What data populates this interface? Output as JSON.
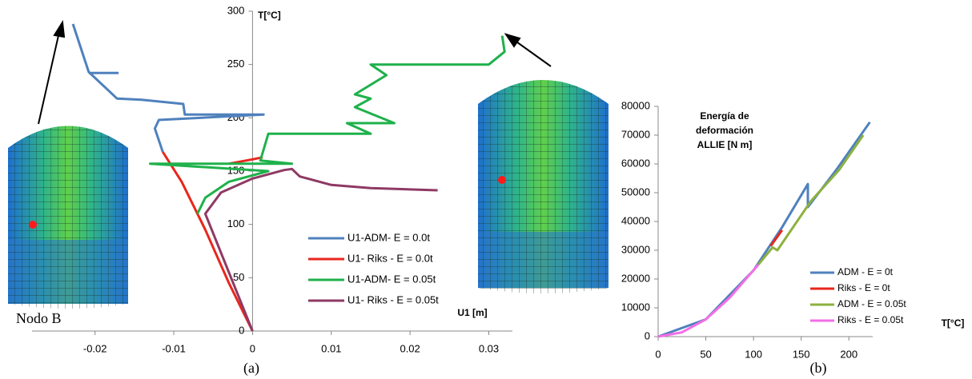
{
  "chart_data": [
    {
      "type": "line",
      "caption": "(a)",
      "annotation": "Nodo B",
      "x_label": "U1 [m]",
      "y_label": "T[°C]",
      "xlim": [
        -0.028,
        0.033
      ],
      "ylim": [
        0,
        300
      ],
      "xticks": [
        -0.02,
        -0.01,
        0,
        0.01,
        0.02,
        0.03
      ],
      "yticks": [
        0,
        50,
        100,
        150,
        200,
        250,
        300
      ],
      "series": [
        {
          "name": "U1-ADM- E = 0.0t",
          "color": "#4f81bd",
          "x": [
            -0.0228,
            -0.0208,
            -0.0172,
            -0.0141,
            -0.0088,
            -0.0086,
            0.0014,
            -0.0119,
            -0.0124,
            -0.0114,
            null,
            -0.0208,
            -0.017
          ],
          "values": [
            288,
            243,
            218,
            217,
            213,
            203,
            203,
            198,
            190,
            168,
            null,
            242,
            242
          ]
        },
        {
          "name": "U1- Riks - E = 0.0t",
          "color": "#e8261c",
          "x": [
            0,
            -0.003,
            -0.006,
            -0.009,
            -0.0114,
            null,
            -0.003,
            0,
            0.0013
          ],
          "values": [
            0,
            45,
            95,
            140,
            168,
            null,
            157,
            161,
            163
          ]
        },
        {
          "name": "U1-ADM- E = 0.05t",
          "color": "#1fb14b",
          "x": [
            -0.007,
            -0.006,
            -0.003,
            0.002,
            -0.013,
            0.005,
            0.001,
            0.002,
            0.015,
            0.012,
            0.018,
            0.013,
            0.015,
            0.013,
            0.017,
            0.015,
            0.03,
            0.032,
            0.0317
          ],
          "values": [
            110,
            125,
            140,
            150,
            157,
            157,
            160,
            185,
            185,
            195,
            195,
            210,
            218,
            222,
            240,
            250,
            250,
            262,
            277
          ]
        },
        {
          "name": "U1- Riks - E = 0.05t",
          "color": "#8e3a63",
          "x": [
            0,
            -0.003,
            -0.006,
            -0.004,
            0,
            0.004,
            0.005,
            0.006,
            0.01,
            0.015,
            0.0235
          ],
          "values": [
            0,
            55,
            110,
            130,
            143,
            151,
            152,
            145,
            137,
            134,
            132
          ]
        }
      ]
    },
    {
      "type": "line",
      "caption": "(b)",
      "x_label": "T[°C]",
      "y_label": [
        "Energía de",
        "deformación",
        "ALLIE [N m]"
      ],
      "xlim": [
        0,
        225
      ],
      "ylim": [
        0,
        80000
      ],
      "xticks": [
        0,
        50,
        100,
        150,
        200
      ],
      "yticks": [
        0,
        10000,
        20000,
        30000,
        40000,
        50000,
        60000,
        70000,
        80000
      ],
      "series": [
        {
          "name": "ADM - E = 0t",
          "color": "#4f81bd",
          "x": [
            0,
            50,
            100,
            130,
            157,
            157,
            187,
            222
          ],
          "values": [
            0,
            6000,
            23000,
            38000,
            53000,
            45000,
            58000,
            74500
          ]
        },
        {
          "name": "Riks - E = 0t",
          "color": "#e8261c",
          "x": [
            118,
            130
          ],
          "values": [
            31500,
            37000
          ]
        },
        {
          "name": "ADM - E = 0.05t",
          "color": "#8db13f",
          "x": [
            105,
            120,
            125,
            160,
            190,
            215
          ],
          "values": [
            25000,
            31000,
            30000,
            47000,
            58000,
            70000
          ]
        },
        {
          "name": "Riks - E = 0.05t",
          "color": "#f36ee6",
          "x": [
            0,
            25,
            50,
            75,
            105
          ],
          "values": [
            0,
            1500,
            6000,
            13500,
            25000
          ]
        }
      ]
    }
  ]
}
